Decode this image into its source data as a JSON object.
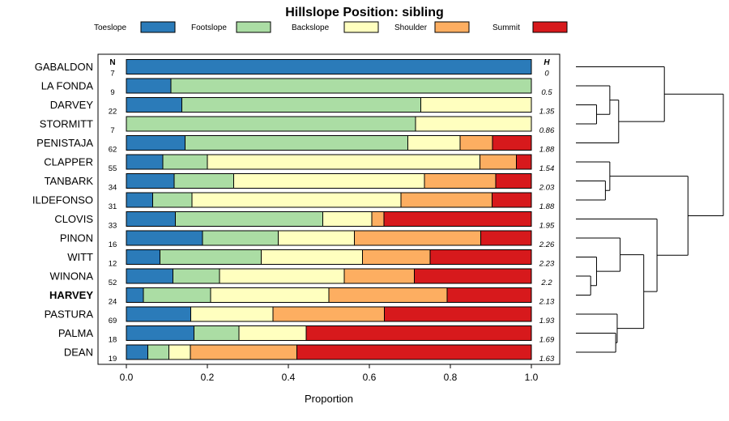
{
  "chart_data": {
    "type": "bar",
    "stacked": "horizontal",
    "title": "Hillslope Position: sibling",
    "xlabel": "Proportion",
    "ylabel": "",
    "xlim": [
      0,
      1
    ],
    "x_ticks": [
      "0.0",
      "0.2",
      "0.4",
      "0.6",
      "0.8",
      "1.0"
    ],
    "n_header": "N",
    "h_header": "H",
    "legend_placement": "top",
    "series": [
      {
        "name": "Toeslope",
        "color": "#2b7bb9"
      },
      {
        "name": "Footslope",
        "color": "#abdda4"
      },
      {
        "name": "Backslope",
        "color": "#ffffbf"
      },
      {
        "name": "Shoulder",
        "color": "#fdae61"
      },
      {
        "name": "Summit",
        "color": "#d7191c"
      }
    ],
    "rows": [
      {
        "label": "GABALDON",
        "n": "7",
        "h": "0",
        "values": [
          1.0,
          0,
          0,
          0,
          0
        ],
        "bold": false
      },
      {
        "label": "LA FONDA",
        "n": "9",
        "h": "0.5",
        "values": [
          0.11,
          0.89,
          0,
          0,
          0
        ],
        "bold": false
      },
      {
        "label": "DARVEY",
        "n": "22",
        "h": "1.35",
        "values": [
          0.137,
          0.59,
          0.273,
          0,
          0
        ],
        "bold": false
      },
      {
        "label": "STORMITT",
        "n": "7",
        "h": "0.86",
        "values": [
          0,
          0.714,
          0.286,
          0,
          0
        ],
        "bold": false
      },
      {
        "label": "PENISTAJA",
        "n": "62",
        "h": "1.88",
        "values": [
          0.145,
          0.55,
          0.129,
          0.08,
          0.096
        ],
        "bold": false
      },
      {
        "label": "CLAPPER",
        "n": "55",
        "h": "1.54",
        "values": [
          0.09,
          0.11,
          0.673,
          0.09,
          0.037
        ],
        "bold": false
      },
      {
        "label": "TANBARK",
        "n": "34",
        "h": "2.03",
        "values": [
          0.118,
          0.147,
          0.471,
          0.176,
          0.088
        ],
        "bold": false
      },
      {
        "label": "ILDEFONSO",
        "n": "31",
        "h": "1.88",
        "values": [
          0.065,
          0.097,
          0.516,
          0.225,
          0.097
        ],
        "bold": false
      },
      {
        "label": "CLOVIS",
        "n": "33",
        "h": "1.95",
        "values": [
          0.121,
          0.364,
          0.121,
          0.03,
          0.364
        ],
        "bold": false
      },
      {
        "label": "PINON",
        "n": "16",
        "h": "2.26",
        "values": [
          0.188,
          0.187,
          0.188,
          0.312,
          0.125
        ],
        "bold": false
      },
      {
        "label": "WITT",
        "n": "12",
        "h": "2.23",
        "values": [
          0.083,
          0.25,
          0.25,
          0.167,
          0.25
        ],
        "bold": false
      },
      {
        "label": "WINONA",
        "n": "52",
        "h": "2.2",
        "values": [
          0.115,
          0.115,
          0.308,
          0.173,
          0.289
        ],
        "bold": false
      },
      {
        "label": "HARVEY",
        "n": "24",
        "h": "2.13",
        "values": [
          0.042,
          0.166,
          0.292,
          0.292,
          0.208
        ],
        "bold": true
      },
      {
        "label": "PASTURA",
        "n": "69",
        "h": "1.93",
        "values": [
          0.159,
          0,
          0.203,
          0.275,
          0.363
        ],
        "bold": false
      },
      {
        "label": "PALMA",
        "n": "18",
        "h": "1.69",
        "values": [
          0.167,
          0.111,
          0.166,
          0,
          0.556
        ],
        "bold": false
      },
      {
        "label": "DEAN",
        "n": "19",
        "h": "1.63",
        "values": [
          0.053,
          0.052,
          0.053,
          0.263,
          0.579
        ],
        "bold": false
      }
    ],
    "dendrogram": [
      {
        "a": "leaf:2",
        "b": "leaf:3",
        "height": 0.14
      },
      {
        "a": "node:0",
        "b": "leaf:1",
        "height": 0.23
      },
      {
        "a": "node:1",
        "b": "leaf:4",
        "height": 0.29
      },
      {
        "a": "node:2",
        "b": "leaf:0",
        "height": 0.6
      },
      {
        "a": "leaf:6",
        "b": "leaf:7",
        "height": 0.2
      },
      {
        "a": "leaf:5",
        "b": "node:4",
        "height": 0.23
      },
      {
        "a": "leaf:11",
        "b": "leaf:12",
        "height": 0.1
      },
      {
        "a": "leaf:10",
        "b": "node:6",
        "height": 0.14
      },
      {
        "a": "leaf:9",
        "b": "node:7",
        "height": 0.3
      },
      {
        "a": "leaf:14",
        "b": "leaf:15",
        "height": 0.27
      },
      {
        "a": "leaf:13",
        "b": "node:9",
        "height": 0.28
      },
      {
        "a": "node:8",
        "b": "node:10",
        "height": 0.46
      },
      {
        "a": "leaf:8",
        "b": "node:11",
        "height": 0.55
      },
      {
        "a": "node:5",
        "b": "node:12",
        "height": 0.76
      },
      {
        "a": "node:3",
        "b": "node:13",
        "height": 1.0
      }
    ]
  }
}
